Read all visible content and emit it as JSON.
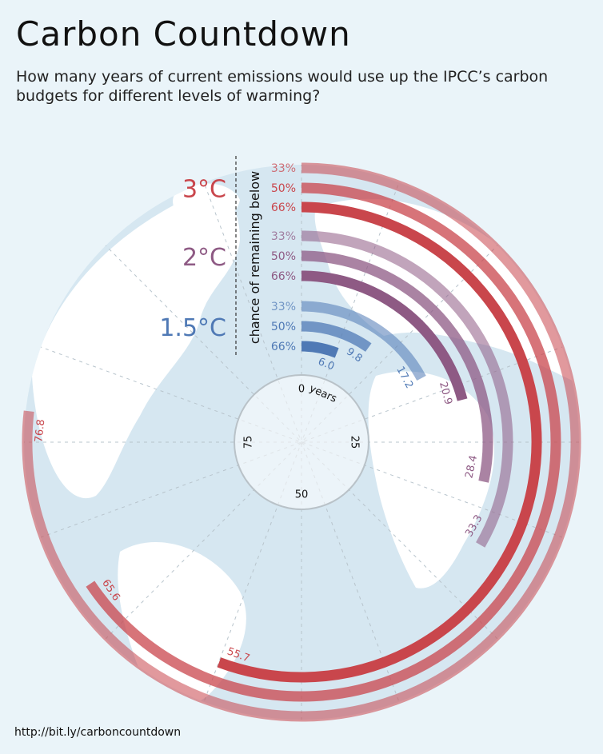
{
  "header": {
    "title": "Carbon Countdown",
    "subtitle": "How many years of current emissions would use up the IPCC’s carbon budgets for different levels of warming?"
  },
  "footer": {
    "source": "http://bit.ly/carboncountdown"
  },
  "colors": {
    "background": "#eaf4f9",
    "land": "#ffffff",
    "ocean_disc": "#d6e7f1",
    "3C": "#c9464c",
    "2C": "#8e5a84",
    "1.5C": "#4f79b5",
    "core_ring": "#b9c2c8"
  },
  "chart_data": {
    "type": "radial-bar",
    "axis": {
      "title": "years",
      "ticks": [
        0,
        25,
        50,
        75
      ],
      "tick_labels": [
        "0",
        "25",
        "50",
        "75"
      ],
      "range": [
        0,
        100
      ]
    },
    "side_label": "chance of remaining below",
    "groups": [
      {
        "name": "3°C",
        "color": "#c9464c",
        "series": [
          {
            "name": "33%",
            "value": 76.8
          },
          {
            "name": "50%",
            "value": 65.6
          },
          {
            "name": "66%",
            "value": 55.7
          }
        ]
      },
      {
        "name": "2°C",
        "color": "#8e5a84",
        "series": [
          {
            "name": "33%",
            "value": 33.3
          },
          {
            "name": "50%",
            "value": 28.4
          },
          {
            "name": "66%",
            "value": 20.9
          }
        ]
      },
      {
        "name": "1.5°C",
        "color": "#4f79b5",
        "series": [
          {
            "name": "33%",
            "value": 17.2
          },
          {
            "name": "50%",
            "value": 9.8
          },
          {
            "name": "66%",
            "value": 6.0
          }
        ]
      }
    ],
    "value_labels": [
      "76.8",
      "65.6",
      "55.7",
      "33.3",
      "28.4",
      "20.9",
      "17.2",
      "9.8",
      "6.0"
    ]
  }
}
